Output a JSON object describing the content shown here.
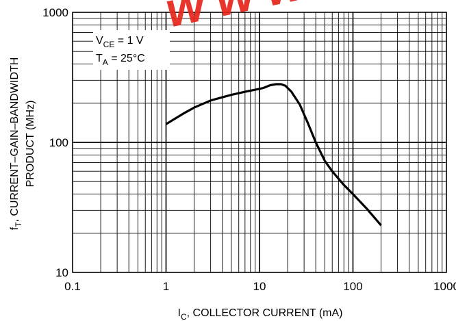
{
  "chart_data": {
    "type": "line",
    "x_scale": "log",
    "y_scale": "log",
    "xlim": [
      0.1,
      1000
    ],
    "ylim": [
      10,
      1000
    ],
    "x_ticks": [
      {
        "value": 0.1,
        "label": "0.1"
      },
      {
        "value": 1,
        "label": "1"
      },
      {
        "value": 10,
        "label": "10"
      },
      {
        "value": 100,
        "label": "100"
      },
      {
        "value": 1000,
        "label": "1000"
      }
    ],
    "y_ticks": [
      {
        "value": 10,
        "label": "10"
      },
      {
        "value": 100,
        "label": "100"
      },
      {
        "value": 1000,
        "label": "1000"
      }
    ],
    "xlabel": {
      "main": "I",
      "sub": "C",
      "rest": ", COLLECTOR CURRENT (mA)"
    },
    "ylabel": {
      "line1_main": "f",
      "line1_sub": "T",
      "line1_rest": ", CURRENT–GAIN–BANDWIDTH",
      "line2": "PRODUCT (MHz)"
    },
    "conditions": [
      {
        "main": "V",
        "sub": "CE",
        "rest": " = 1 V"
      },
      {
        "main": "T",
        "sub": "A",
        "rest": " = 25°C"
      }
    ],
    "grid": true,
    "series": [
      {
        "points": [
          [
            1,
            138
          ],
          [
            1.5,
            165
          ],
          [
            2,
            185
          ],
          [
            3,
            210
          ],
          [
            5,
            232
          ],
          [
            7,
            245
          ],
          [
            10,
            258
          ],
          [
            11,
            262
          ],
          [
            13,
            275
          ],
          [
            15,
            280
          ],
          [
            17,
            280
          ],
          [
            19,
            272
          ],
          [
            22,
            245
          ],
          [
            27,
            195
          ],
          [
            33,
            140
          ],
          [
            40,
            100
          ],
          [
            50,
            72
          ],
          [
            60,
            60
          ],
          [
            80,
            47
          ],
          [
            100,
            40
          ],
          [
            140,
            31
          ],
          [
            200,
            23
          ]
        ]
      }
    ],
    "watermark": "www.c"
  }
}
